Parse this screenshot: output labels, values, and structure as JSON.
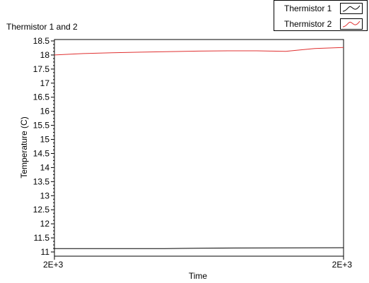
{
  "chart_data": {
    "type": "line",
    "title": "Thermistor 1 and 2",
    "xlabel": "Time",
    "ylabel": "Temperature (C)",
    "ylim": [
      11,
      18.5
    ],
    "yticks": [
      11,
      11.5,
      12,
      12.5,
      13,
      13.5,
      14,
      14.5,
      15,
      15.5,
      16,
      16.5,
      17,
      17.5,
      18,
      18.5
    ],
    "ytick_labels": [
      "11",
      "11.5",
      "12",
      "12.5",
      "13",
      "13.5",
      "14",
      "14.5",
      "15",
      "15.5",
      "16",
      "16.5",
      "17",
      "17.5",
      "18",
      "18.5"
    ],
    "xtick_labels": [
      "2E+3",
      "2E+3"
    ],
    "grid": false,
    "legend_position": "top-right",
    "series": [
      {
        "name": "Thermistor 1",
        "color": "#000000",
        "x": [
          0,
          0.38,
          0.5,
          0.62,
          1.0
        ],
        "y": [
          11.12,
          11.12,
          11.13,
          11.14,
          11.15
        ]
      },
      {
        "name": "Thermistor 2",
        "color": "#e03030",
        "x": [
          0,
          0.1,
          0.2,
          0.3,
          0.4,
          0.5,
          0.6,
          0.7,
          0.75,
          0.8,
          0.85,
          0.9,
          1.0
        ],
        "y": [
          18.0,
          18.05,
          18.08,
          18.1,
          18.12,
          18.14,
          18.15,
          18.15,
          18.14,
          18.13,
          18.18,
          18.23,
          18.27
        ]
      }
    ]
  }
}
